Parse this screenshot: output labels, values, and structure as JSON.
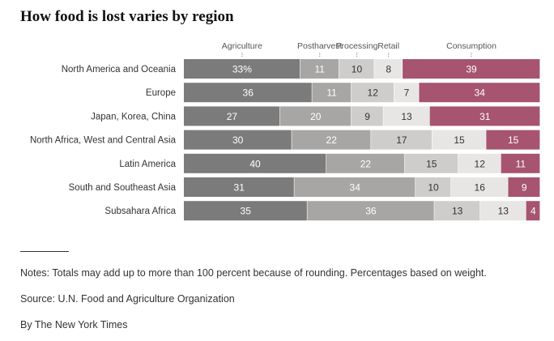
{
  "title": "How food is lost varies by region",
  "chart_data": {
    "type": "bar",
    "orientation": "horizontal",
    "stacked": true,
    "grid": false,
    "legend_placement": "top",
    "stage_labels": [
      "Agriculture",
      "Postharvest",
      "Processing",
      "Retail",
      "Consumption"
    ],
    "categories": [
      "North America and Oceania",
      "Europe",
      "Japan, Korea, China",
      "North Africa, West and Central Asia",
      "Latin America",
      "South and Southeast Asia",
      "Subsahara Africa"
    ],
    "series": [
      {
        "name": "Agriculture",
        "color": "#7b7b7b",
        "text_color": "#ffffff",
        "values": [
          33,
          36,
          27,
          30,
          40,
          31,
          35
        ]
      },
      {
        "name": "Postharvest",
        "color": "#a8a6a4",
        "text_color": "#ffffff",
        "values": [
          11,
          11,
          20,
          22,
          22,
          34,
          36
        ]
      },
      {
        "name": "Processing",
        "color": "#cfcdcb",
        "text_color": "#333333",
        "values": [
          10,
          12,
          9,
          17,
          15,
          10,
          13
        ]
      },
      {
        "name": "Retail",
        "color": "#e7e6e5",
        "text_color": "#333333",
        "values": [
          8,
          7,
          13,
          15,
          12,
          16,
          13
        ]
      },
      {
        "name": "Consumption",
        "color": "#a65470",
        "text_color": "#ffffff",
        "values": [
          39,
          34,
          31,
          15,
          11,
          9,
          4
        ]
      }
    ],
    "first_value_suffix": "%"
  },
  "notes": {
    "note": "Notes: Totals may add up to more than 100 percent because of rounding. Percentages based on weight.",
    "source": "Source: U.N. Food and Agriculture Organization",
    "credit": "By The New York Times"
  }
}
